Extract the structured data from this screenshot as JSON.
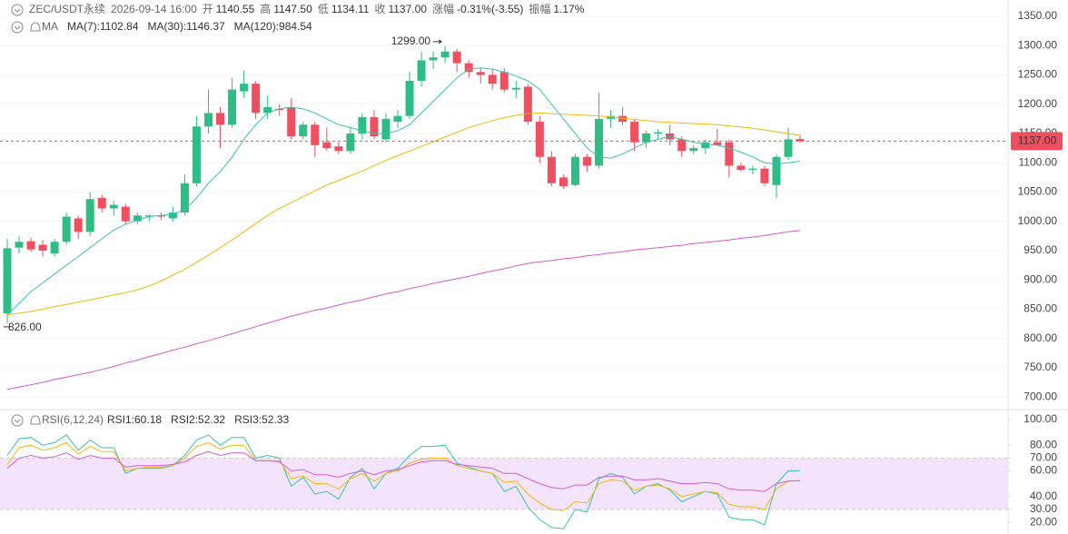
{
  "chart_data": [
    {
      "type": "candlestick",
      "title": {
        "symbol": "ZEC/USDT永续",
        "datetime": "2026-09-14 16:00",
        "fields": [
          {
            "label": "开",
            "value": "1140.55"
          },
          {
            "label": "高",
            "value": "1147.50"
          },
          {
            "label": "低",
            "value": "1134.11"
          },
          {
            "label": "收",
            "value": "1137.00"
          },
          {
            "label": "涨幅",
            "value": "-0.31%(-3.55)"
          },
          {
            "label": "振幅",
            "value": "1.17%"
          }
        ]
      },
      "legend_title": "MA",
      "up_color": "#2ebd85",
      "down_color": "#ef4f5e",
      "open": [
        843,
        955,
        966,
        960,
        945,
        965,
        1005,
        982,
        1040,
        1022,
        1025,
        1000,
        1008,
        1010,
        1005,
        1015,
        1065,
        1162,
        1185,
        1165,
        1222,
        1235,
        1185,
        1192,
        1195,
        1145,
        1165,
        1135,
        1128,
        1120,
        1150,
        1178,
        1140,
        1170,
        1180,
        1240,
        1275,
        1280,
        1290,
        1270,
        1255,
        1250,
        1255,
        1225,
        1230,
        1170,
        1110,
        1075,
        1062,
        1110,
        1095,
        1175,
        1180,
        1170,
        1135,
        1150,
        1150,
        1140,
        1120,
        1125,
        1135,
        1135,
        1095,
        1088,
        1090,
        1062,
        1110,
        1140.55
      ],
      "high": [
        970,
        975,
        972,
        968,
        970,
        1015,
        1010,
        1050,
        1045,
        1035,
        1030,
        1015,
        1012,
        1015,
        1025,
        1080,
        1180,
        1225,
        1195,
        1245,
        1258,
        1240,
        1215,
        1200,
        1210,
        1170,
        1170,
        1160,
        1135,
        1160,
        1185,
        1190,
        1185,
        1190,
        1255,
        1290,
        1290,
        1299,
        1295,
        1275,
        1262,
        1260,
        1262,
        1240,
        1235,
        1180,
        1120,
        1080,
        1115,
        1115,
        1220,
        1190,
        1195,
        1175,
        1155,
        1158,
        1165,
        1145,
        1130,
        1140,
        1158,
        1140,
        1100,
        1095,
        1095,
        1115,
        1160,
        1147.5
      ],
      "low": [
        826,
        945,
        948,
        940,
        940,
        960,
        970,
        975,
        1015,
        1010,
        995,
        995,
        1000,
        1002,
        1000,
        1010,
        1060,
        1150,
        1125,
        1160,
        1210,
        1175,
        1175,
        1180,
        1140,
        1140,
        1110,
        1120,
        1115,
        1115,
        1140,
        1140,
        1135,
        1160,
        1175,
        1230,
        1260,
        1270,
        1255,
        1245,
        1235,
        1225,
        1220,
        1210,
        1165,
        1100,
        1060,
        1055,
        1060,
        1085,
        1090,
        1160,
        1165,
        1120,
        1125,
        1140,
        1130,
        1110,
        1115,
        1115,
        1130,
        1075,
        1085,
        1080,
        1060,
        1040,
        1105,
        1134.11
      ],
      "close": [
        954,
        965,
        952,
        950,
        965,
        1008,
        982,
        1038,
        1022,
        1028,
        1000,
        1010,
        1010,
        1008,
        1015,
        1065,
        1162,
        1185,
        1165,
        1225,
        1235,
        1185,
        1195,
        1190,
        1145,
        1165,
        1130,
        1125,
        1120,
        1150,
        1178,
        1145,
        1175,
        1180,
        1240,
        1275,
        1280,
        1290,
        1270,
        1255,
        1250,
        1235,
        1225,
        1228,
        1170,
        1110,
        1065,
        1060,
        1110,
        1095,
        1175,
        1180,
        1170,
        1135,
        1150,
        1152,
        1140,
        1120,
        1125,
        1135,
        1130,
        1095,
        1088,
        1090,
        1065,
        1110,
        1140,
        1137
      ],
      "series": [
        {
          "name": "MA(7):1102.84",
          "color": "#36c2b4",
          "values": [
            840,
            860,
            880,
            895,
            910,
            925,
            940,
            955,
            970,
            985,
            995,
            1002,
            1008,
            1010,
            1012,
            1020,
            1040,
            1065,
            1085,
            1110,
            1140,
            1165,
            1185,
            1192,
            1195,
            1192,
            1185,
            1175,
            1165,
            1160,
            1155,
            1150,
            1150,
            1155,
            1165,
            1185,
            1205,
            1225,
            1245,
            1260,
            1262,
            1260,
            1255,
            1248,
            1240,
            1225,
            1200,
            1175,
            1150,
            1125,
            1110,
            1108,
            1115,
            1125,
            1135,
            1140,
            1145,
            1140,
            1135,
            1132,
            1130,
            1125,
            1118,
            1110,
            1100,
            1098,
            1100,
            1102.84
          ]
        },
        {
          "name": "MA(30):1146.37",
          "color": "#f0b90b",
          "values": [
            840,
            843,
            846,
            850,
            854,
            858,
            862,
            866,
            870,
            874,
            878,
            883,
            890,
            898,
            908,
            918,
            930,
            942,
            955,
            968,
            982,
            996,
            1010,
            1022,
            1032,
            1042,
            1052,
            1062,
            1070,
            1078,
            1086,
            1095,
            1104,
            1112,
            1120,
            1128,
            1136,
            1144,
            1152,
            1160,
            1166,
            1172,
            1177,
            1181,
            1184,
            1185,
            1184,
            1183,
            1182,
            1181,
            1180,
            1178,
            1176,
            1174,
            1172,
            1170,
            1169,
            1168,
            1167,
            1166,
            1165,
            1163,
            1161,
            1159,
            1156,
            1153,
            1150,
            1146.37
          ]
        },
        {
          "name": "MA(120):984.54",
          "color": "#d45bd0",
          "values": [
            713,
            717,
            721,
            725,
            730,
            734,
            738,
            742,
            747,
            752,
            758,
            763,
            769,
            774,
            780,
            785,
            791,
            796,
            802,
            808,
            814,
            820,
            826,
            832,
            838,
            843,
            848,
            852,
            857,
            862,
            866,
            871,
            876,
            880,
            885,
            889,
            894,
            898,
            902,
            906,
            911,
            915,
            919,
            924,
            928,
            931,
            933,
            936,
            938,
            941,
            943,
            946,
            948,
            951,
            953,
            955,
            957,
            959,
            962,
            964,
            966,
            968,
            971,
            973,
            976,
            979,
            982,
            984.54
          ]
        }
      ],
      "ylim": [
        680,
        1378
      ],
      "yticks": [
        {
          "value": 1350,
          "label": "1350.00"
        },
        {
          "value": 1300,
          "label": "1300.00"
        },
        {
          "value": 1250,
          "label": "1250.00"
        },
        {
          "value": 1200,
          "label": "1200.00"
        },
        {
          "value": 1150,
          "label": "1150.00"
        },
        {
          "value": 1100,
          "label": "1100.00"
        },
        {
          "value": 1050,
          "label": "1050.00"
        },
        {
          "value": 1000,
          "label": "1000.00"
        },
        {
          "value": 950,
          "label": "950.00"
        },
        {
          "value": 900,
          "label": "900.00"
        },
        {
          "value": 850,
          "label": "850.00"
        },
        {
          "value": 800,
          "label": "800.00"
        },
        {
          "value": 750,
          "label": "750.00"
        },
        {
          "value": 700,
          "label": "700.00"
        }
      ],
      "last_price": {
        "value": 1137,
        "label": "1137.00",
        "color": "#ef4f5e"
      },
      "annotations": [
        {
          "value": 1299,
          "label": "1299.00"
        },
        {
          "value": 826,
          "label": "826.00"
        }
      ],
      "grid": true
    },
    {
      "type": "line",
      "legend_title": "RSI(6,12,24)",
      "series": [
        {
          "name": "RSI1:60.18",
          "color": "#36c2b4",
          "values": [
            72,
            85,
            86,
            80,
            82,
            88,
            76,
            84,
            78,
            78,
            58,
            62,
            62,
            62,
            64,
            72,
            84,
            88,
            80,
            86,
            86,
            70,
            72,
            70,
            48,
            55,
            42,
            44,
            38,
            55,
            62,
            46,
            58,
            62,
            72,
            79,
            79,
            80,
            66,
            63,
            60,
            58,
            44,
            48,
            32,
            22,
            16,
            15,
            30,
            28,
            54,
            58,
            55,
            42,
            48,
            50,
            45,
            36,
            40,
            44,
            42,
            24,
            22,
            22,
            18,
            50,
            60,
            60.18
          ]
        },
        {
          "name": "RSI2:52.32",
          "color": "#f0b90b",
          "values": [
            65,
            78,
            80,
            76,
            78,
            82,
            73,
            79,
            75,
            75,
            60,
            62,
            63,
            63,
            64,
            70,
            79,
            82,
            77,
            80,
            80,
            68,
            68,
            68,
            54,
            56,
            50,
            50,
            46,
            54,
            58,
            52,
            58,
            60,
            66,
            69,
            70,
            70,
            64,
            62,
            60,
            58,
            51,
            52,
            42,
            35,
            30,
            29,
            36,
            35,
            50,
            53,
            52,
            45,
            48,
            49,
            46,
            40,
            42,
            44,
            43,
            34,
            32,
            32,
            30,
            46,
            52,
            52.32
          ]
        },
        {
          "name": "RSI3:52.33",
          "color": "#d45bd0",
          "values": [
            62,
            70,
            72,
            70,
            71,
            74,
            69,
            72,
            70,
            70,
            63,
            64,
            64,
            64,
            65,
            67,
            72,
            75,
            72,
            74,
            74,
            68,
            68,
            67,
            60,
            61,
            57,
            57,
            55,
            58,
            60,
            57,
            60,
            61,
            64,
            67,
            68,
            68,
            65,
            64,
            63,
            62,
            58,
            58,
            54,
            50,
            47,
            46,
            49,
            49,
            55,
            56,
            56,
            53,
            53,
            54,
            52,
            50,
            50,
            51,
            50,
            46,
            45,
            45,
            44,
            50,
            52,
            52.33
          ]
        }
      ],
      "ylim": [
        13,
        107
      ],
      "yticks": [
        {
          "value": 100,
          "label": "100.00"
        },
        {
          "value": 80,
          "label": "80.00"
        },
        {
          "value": 70,
          "label": "70.00"
        },
        {
          "value": 60,
          "label": "60.00"
        },
        {
          "value": 40,
          "label": "40.00"
        },
        {
          "value": 30,
          "label": "30.00"
        },
        {
          "value": 20,
          "label": "20.00"
        }
      ],
      "band": [
        30,
        70
      ],
      "band_color": "#f3e4fb"
    }
  ]
}
